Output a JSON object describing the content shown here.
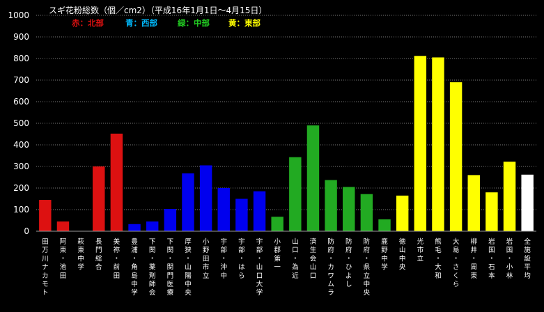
{
  "chart_data": {
    "type": "bar",
    "title": "スギ花粉総数（個／cm2）（平成16年1月1日～4月15日）",
    "legend": [
      {
        "label": "赤：北部",
        "color": "#dd1111"
      },
      {
        "label": "青：西部",
        "color": "#00bbff"
      },
      {
        "label": "緑：中部",
        "color": "#22cc22"
      },
      {
        "label": "黄：東部",
        "color": "#ffff00"
      }
    ],
    "ylim": [
      0,
      1000
    ],
    "yticks": [
      0,
      100,
      200,
      300,
      400,
      500,
      600,
      700,
      800,
      900,
      1000
    ],
    "grid": true,
    "categories": [
      "田万川ナカモト",
      "阿東・池田",
      "萩東中学",
      "長門総合",
      "美祢・前田",
      "豊浦・角島中学",
      "下関・薬剤師会",
      "下関・関門医療",
      "厚狭・山陽中央",
      "小野田市立",
      "宇部・沖中",
      "宇部・はら",
      "宇部・山口大学",
      "小郡第一",
      "山口・為近",
      "済生会山口",
      "防府・カワムラ",
      "防府・ひよし",
      "防府・県立中央",
      "鹿野中学",
      "徳山中央",
      "光市立",
      "熊毛・大和",
      "大島・さくら",
      "柳井・周東",
      "岩国・石本",
      "岩国・小林",
      "全施設平均"
    ],
    "values": [
      145,
      45,
      0,
      300,
      452,
      33,
      45,
      103,
      268,
      305,
      200,
      150,
      185,
      67,
      343,
      490,
      237,
      205,
      172,
      55,
      165,
      812,
      805,
      690,
      260,
      180,
      322,
      262
    ],
    "bar_colors": [
      "#dd1111",
      "#dd1111",
      "#dd1111",
      "#dd1111",
      "#dd1111",
      "#0000ee",
      "#0000ee",
      "#0000ee",
      "#0000ee",
      "#0000ee",
      "#0000ee",
      "#0000ee",
      "#0000ee",
      "#22aa22",
      "#22aa22",
      "#22aa22",
      "#22aa22",
      "#22aa22",
      "#22aa22",
      "#22aa22",
      "#ffff00",
      "#ffff00",
      "#ffff00",
      "#ffff00",
      "#ffff00",
      "#ffff00",
      "#ffff00",
      "#ffffff"
    ]
  }
}
